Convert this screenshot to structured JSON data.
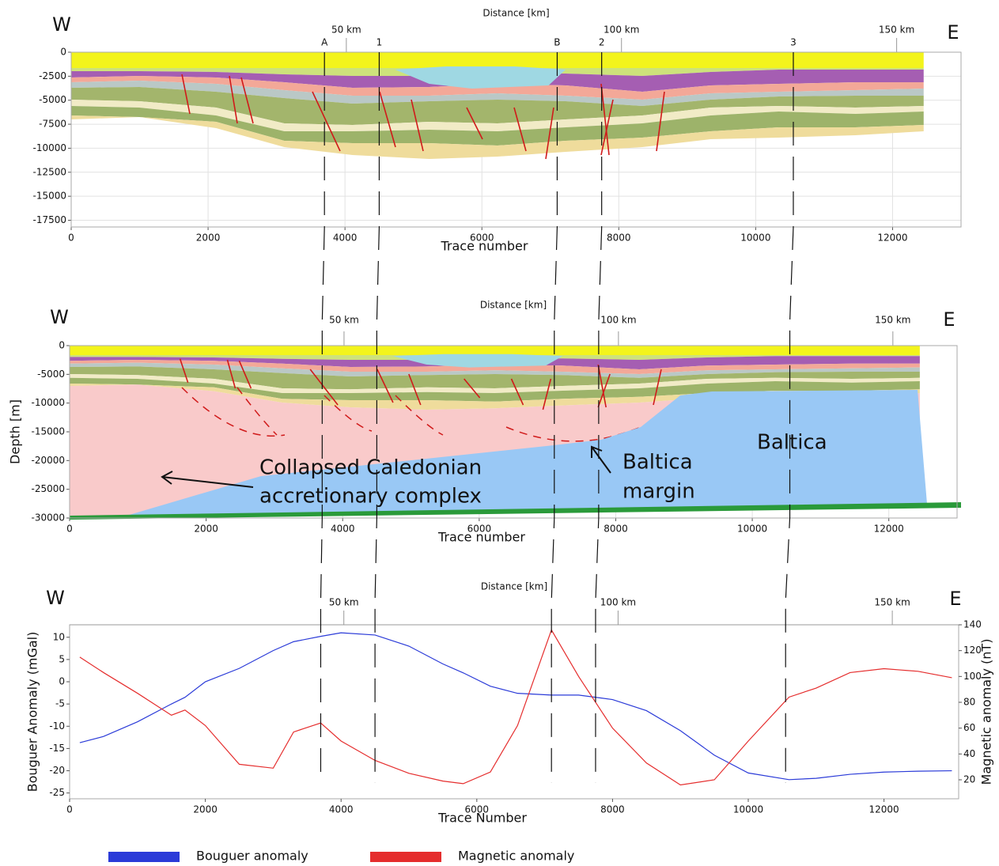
{
  "chart_data": [
    {
      "type": "section",
      "title": "Distance [km]",
      "xlabel": "Trace number",
      "side_labels": [
        "W",
        "E"
      ],
      "xlim": [
        0,
        13000
      ],
      "xticks": [
        0,
        2000,
        4000,
        6000,
        8000,
        10000,
        12000
      ],
      "ylim": [
        -18200,
        0
      ],
      "yticks": [
        0,
        -2500,
        -5000,
        -7500,
        -10000,
        -12500,
        -15000,
        -17500
      ],
      "x2lim": [
        0,
        161.7
      ],
      "x2ticks": [
        {
          "value": 50,
          "label": "50 km"
        },
        {
          "value": 100,
          "label": "100 km"
        },
        {
          "value": 150,
          "label": "150 km"
        }
      ],
      "wells": [
        {
          "label": "A",
          "x": 3700
        },
        {
          "label": "1",
          "x": 4500
        },
        {
          "label": "B",
          "x": 7100
        },
        {
          "label": "2",
          "x": 7750
        },
        {
          "label": "3",
          "x": 10550
        }
      ],
      "grid": true
    },
    {
      "type": "section",
      "title": "Distance [km]",
      "xlabel": "Trace number",
      "ylabel": "Depth [m]",
      "side_labels": [
        "W",
        "E"
      ],
      "xlim": [
        0,
        13000
      ],
      "xticks": [
        0,
        2000,
        4000,
        6000,
        8000,
        10000,
        12000
      ],
      "ylim": [
        -30000,
        0
      ],
      "yticks": [
        0,
        -5000,
        -10000,
        -15000,
        -20000,
        -25000,
        -30000
      ],
      "x2lim": [
        0,
        161.7
      ],
      "x2ticks": [
        {
          "value": 50,
          "label": "50 km"
        },
        {
          "value": 100,
          "label": "100 km"
        },
        {
          "value": 150,
          "label": "150 km"
        }
      ],
      "annotations": [
        "Collapsed Caledonian",
        "accretionary complex",
        "Baltica",
        "margin",
        "Baltica"
      ],
      "grid": true
    },
    {
      "type": "line",
      "title": "Distance [km]",
      "xlabel": "Trace Number",
      "ylabel": "Bouguer Anomaly (mGal)",
      "y2label": "Magnetic anomaly (nT)",
      "side_labels": [
        "W",
        "E"
      ],
      "xlim": [
        0,
        13100
      ],
      "xticks": [
        0,
        2000,
        4000,
        6000,
        8000,
        10000,
        12000
      ],
      "ylim": [
        -26.3,
        12.8
      ],
      "yticks": [
        -25,
        -20,
        -15,
        -10,
        -5,
        0,
        5,
        10
      ],
      "y2lim": [
        5.3,
        140
      ],
      "y2ticks": [
        20,
        40,
        60,
        80,
        100,
        120,
        140
      ],
      "x2lim": [
        0,
        162.1
      ],
      "x2ticks": [
        {
          "value": 50,
          "label": "50 km"
        },
        {
          "value": 100,
          "label": "100 km"
        },
        {
          "value": 150,
          "label": "150 km"
        }
      ],
      "x": [
        150,
        500,
        1000,
        1500,
        1700,
        2000,
        2500,
        3000,
        3300,
        3700,
        4000,
        4500,
        5000,
        5500,
        5800,
        6200,
        6600,
        7100,
        7500,
        8000,
        8500,
        9000,
        9500,
        10000,
        10600,
        11000,
        11500,
        12000,
        12500,
        13000
      ],
      "series": [
        {
          "name": "Bouguer anomaly",
          "color": "#2b3bd8",
          "values": [
            -13.7,
            -12.3,
            -9,
            -5,
            -3.5,
            0,
            3,
            7,
            9,
            10.2,
            11,
            10.5,
            8,
            4,
            2,
            -1,
            -2.6,
            -3,
            -3,
            -4,
            -6.5,
            -11,
            -16.5,
            -20.5,
            -22,
            -21.7,
            -20.8,
            -20.3,
            -20.1,
            -20
          ]
        },
        {
          "name": "Magnetic anomaly",
          "color": "#e52d2d",
          "axis": "y2",
          "values": [
            115,
            103,
            87,
            70,
            74,
            62,
            32,
            29,
            57,
            64,
            50,
            35,
            25,
            19,
            17,
            26,
            62,
            136,
            100,
            60,
            33,
            16,
            20,
            50,
            84,
            91,
            103,
            106,
            104,
            99
          ]
        }
      ],
      "legend": "bottom"
    }
  ]
}
